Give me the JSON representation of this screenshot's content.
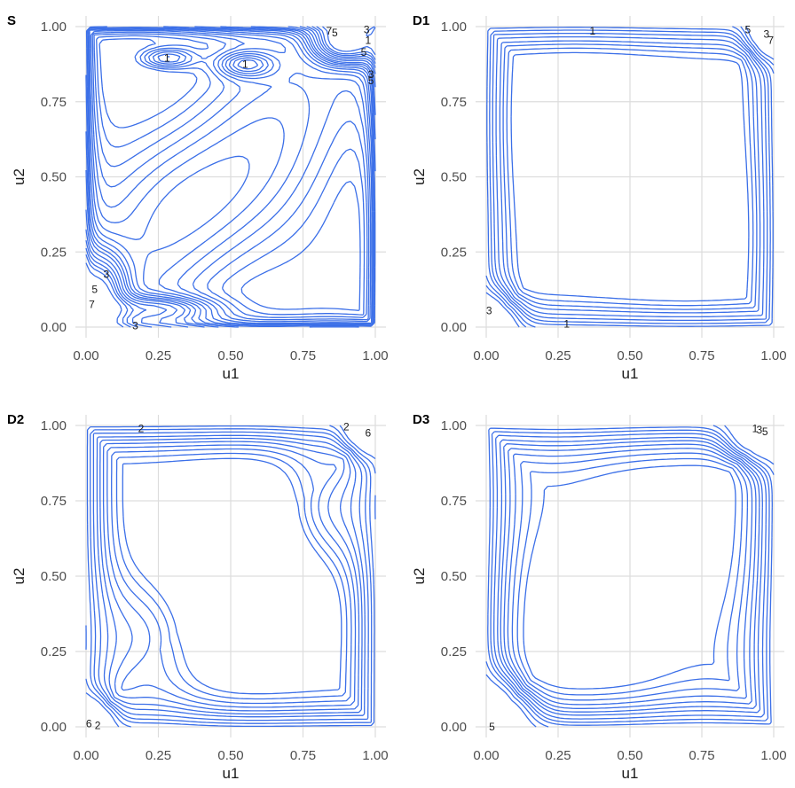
{
  "chart_data": [
    {
      "type": "contour",
      "tag": "S",
      "xlabel": "u1",
      "ylabel": "u2",
      "xlim": [
        0,
        1
      ],
      "ylim": [
        0,
        1
      ],
      "xticks": [
        "0.00",
        "0.25",
        "0.50",
        "0.75",
        "1.00"
      ],
      "yticks": [
        "0.00",
        "0.25",
        "0.50",
        "0.75",
        "1.00"
      ],
      "grid": true,
      "line_color": "#3b6fe8",
      "contour_labels": [
        {
          "text": "1",
          "x": 0.28,
          "y": 0.895
        },
        {
          "text": "1",
          "x": 0.55,
          "y": 0.875
        },
        {
          "text": "7",
          "x": 0.84,
          "y": 0.985
        },
        {
          "text": "5",
          "x": 0.86,
          "y": 0.98
        },
        {
          "text": "3",
          "x": 0.97,
          "y": 0.99
        },
        {
          "text": "1",
          "x": 0.975,
          "y": 0.955
        },
        {
          "text": "5",
          "x": 0.96,
          "y": 0.915
        },
        {
          "text": "3",
          "x": 0.985,
          "y": 0.84
        },
        {
          "text": "5",
          "x": 0.985,
          "y": 0.82
        },
        {
          "text": "3",
          "x": 0.07,
          "y": 0.175
        },
        {
          "text": "5",
          "x": 0.03,
          "y": 0.125
        },
        {
          "text": "7",
          "x": 0.02,
          "y": 0.075
        },
        {
          "text": "3",
          "x": 0.17,
          "y": 0.005
        }
      ]
    },
    {
      "type": "contour",
      "tag": "D1",
      "xlabel": "u1",
      "ylabel": "u2",
      "xlim": [
        0,
        1
      ],
      "ylim": [
        0,
        1
      ],
      "xticks": [
        "0.00",
        "0.25",
        "0.50",
        "0.75",
        "1.00"
      ],
      "yticks": [
        "0.00",
        "0.25",
        "0.50",
        "0.75",
        "1.00"
      ],
      "grid": true,
      "line_color": "#3b6fe8",
      "contour_labels": [
        {
          "text": "1",
          "x": 0.37,
          "y": 0.985
        },
        {
          "text": "5",
          "x": 0.91,
          "y": 0.99
        },
        {
          "text": "3",
          "x": 0.975,
          "y": 0.975
        },
        {
          "text": "7",
          "x": 0.99,
          "y": 0.955
        },
        {
          "text": "3",
          "x": 0.01,
          "y": 0.055
        },
        {
          "text": "1",
          "x": 0.28,
          "y": 0.01
        }
      ]
    },
    {
      "type": "contour",
      "tag": "D2",
      "xlabel": "u1",
      "ylabel": "u2",
      "xlim": [
        0,
        1
      ],
      "ylim": [
        0,
        1
      ],
      "xticks": [
        "0.00",
        "0.25",
        "0.50",
        "0.75",
        "1.00"
      ],
      "yticks": [
        "0.00",
        "0.25",
        "0.50",
        "0.75",
        "1.00"
      ],
      "grid": true,
      "line_color": "#3b6fe8",
      "contour_labels": [
        {
          "text": "2",
          "x": 0.19,
          "y": 0.99
        },
        {
          "text": "2",
          "x": 0.9,
          "y": 0.995
        },
        {
          "text": "6",
          "x": 0.975,
          "y": 0.975
        },
        {
          "text": "6",
          "x": 0.01,
          "y": 0.01
        },
        {
          "text": "2",
          "x": 0.04,
          "y": 0.005
        }
      ]
    },
    {
      "type": "contour",
      "tag": "D3",
      "xlabel": "u1",
      "ylabel": "u2",
      "xlim": [
        0,
        1
      ],
      "ylim": [
        0,
        1
      ],
      "xticks": [
        "0.00",
        "0.25",
        "0.50",
        "0.75",
        "1.00"
      ],
      "yticks": [
        "0.00",
        "0.25",
        "0.50",
        "0.75",
        "1.00"
      ],
      "grid": true,
      "line_color": "#3b6fe8",
      "contour_labels": [
        {
          "text": "1",
          "x": 0.935,
          "y": 0.99
        },
        {
          "text": "3",
          "x": 0.95,
          "y": 0.985
        },
        {
          "text": "5",
          "x": 0.97,
          "y": 0.98
        },
        {
          "text": "5",
          "x": 0.02,
          "y": 0.0
        }
      ]
    }
  ]
}
